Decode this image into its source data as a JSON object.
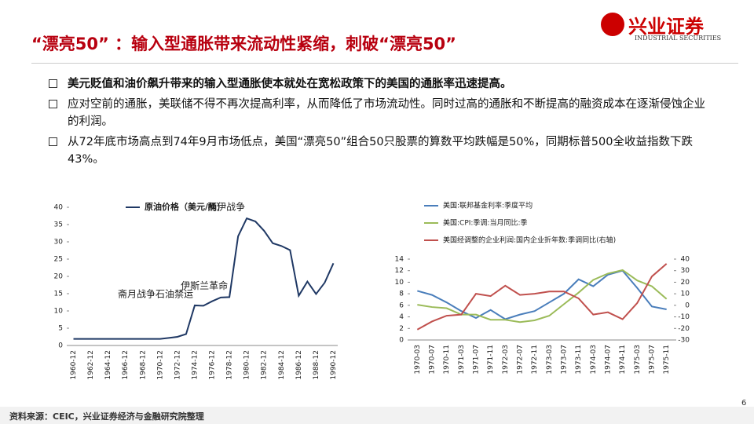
{
  "header": {
    "title": "“漂亮50” ：输入型通胀带来流动性紧缩，刺破“漂亮50”",
    "logo_text": "兴业证券",
    "logo_subtext": "INDUSTRIAL SECURITIES"
  },
  "bullets": [
    "美元贬值和油价飙升带来的输入型通胀使本就处在宽松政策下的美国的通胀率迅速提高。",
    "应对空前的通胀，美联储不得不再次提高利率，从而降低了市场流动性。同时过高的通胀和不断提高的融资成本在逐渐侵蚀企业的利润。",
    "从72年底市场高点到74年9月市场低点，美国“漂亮50”组合50只股票的算数平均跌幅是50%，同期标普500全收益指数下跌43%。"
  ],
  "footer": {
    "source": "资料来源：CEIC，兴业证券经济与金融研究院整理",
    "page": "6"
  },
  "chart_data": [
    {
      "type": "line",
      "legend": "top",
      "categories": [
        "1960-12",
        null,
        "1962-12",
        null,
        "1964-12",
        null,
        "1966-12",
        null,
        "1968-12",
        null,
        "1970-12",
        null,
        "1972-12",
        null,
        "1974-12",
        null,
        "1976-12",
        null,
        "1978-12",
        null,
        "1980-12",
        null,
        "1982-12",
        null,
        "1984-12",
        null,
        "1986-12",
        null,
        "1988-12",
        null,
        "1990-12"
      ],
      "series": [
        {
          "name": "原油价格（美元/桶）",
          "color": "#1f3864",
          "values": [
            1.9,
            1.9,
            1.9,
            1.9,
            1.9,
            1.9,
            1.9,
            1.9,
            1.9,
            1.9,
            1.9,
            2.2,
            2.5,
            3.3,
            11.6,
            11.5,
            12.8,
            13.9,
            14.0,
            31.6,
            36.8,
            35.9,
            33.2,
            29.6,
            28.8,
            27.6,
            14.4,
            18.5,
            14.9,
            18.2,
            23.8
          ]
        }
      ],
      "ylim": [
        0,
        40
      ],
      "yticks": [
        0,
        5,
        10,
        15,
        20,
        25,
        30,
        35,
        40
      ],
      "grid": false,
      "annotations": [
        {
          "text": "两伊战争",
          "index": 20
        },
        {
          "text": "伊斯兰革命",
          "index": 18
        },
        {
          "text": "斋月战争石油禁运",
          "index": 14
        }
      ]
    },
    {
      "type": "line",
      "legend": "top-left",
      "categories": [
        "1970-03",
        "1970-07",
        "1970-11",
        "1971-03",
        "1971-07",
        "1971-11",
        "1972-03",
        "1972-07",
        "1972-11",
        "1973-03",
        "1973-07",
        "1973-11",
        "1974-03",
        "1974-07",
        "1974-11",
        "1975-03",
        "1975-07",
        "1975-11"
      ],
      "series": [
        {
          "name": "美国:联邦基金利率:季度平均",
          "color": "#4a7ebb",
          "values": [
            8.5,
            7.8,
            6.5,
            5.0,
            3.8,
            5.2,
            3.6,
            4.4,
            5.0,
            6.5,
            8.0,
            10.5,
            9.3,
            11.3,
            12.0,
            9.0,
            5.8,
            5.3
          ]
        },
        {
          "name": "美国:CPI:季调:当月同比:季",
          "color": "#9bbb59",
          "values": [
            6.1,
            5.7,
            5.5,
            4.4,
            4.4,
            3.5,
            3.5,
            3.1,
            3.4,
            4.2,
            6.2,
            8.2,
            10.4,
            11.5,
            12.1,
            10.3,
            9.3,
            7.1
          ]
        },
        {
          "name": "美国经调整的企业利润:国内企业折年数:季调同比(右轴)",
          "color": "#c0504d",
          "axis": "y2",
          "values": [
            -21,
            -14,
            -9,
            -8,
            10,
            8,
            17,
            9,
            10,
            12,
            12,
            6,
            -8,
            -6,
            -12,
            2,
            25,
            36
          ]
        }
      ],
      "ylim": [
        0,
        14
      ],
      "yticks": [
        0,
        2,
        4,
        6,
        8,
        10,
        12,
        14
      ],
      "y2lim": [
        -30,
        40
      ],
      "y2ticks": [
        -30,
        -20,
        -10,
        0,
        10,
        20,
        30,
        40
      ],
      "grid": false
    }
  ]
}
